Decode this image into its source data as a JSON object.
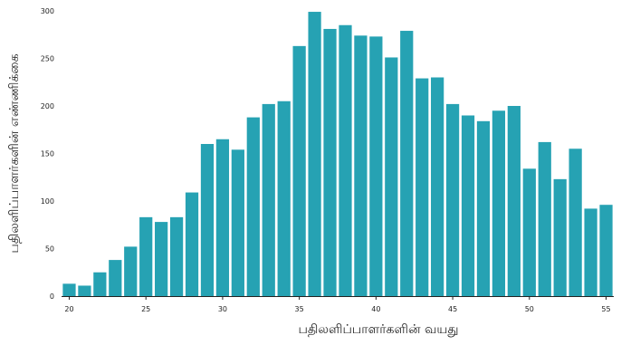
{
  "chart_data": {
    "type": "bar",
    "xlabel": "பதிலளிப்பாளர்களின் வயது",
    "ylabel": "பதிலளிப்பாளர்களின் எண்ணிக்கை",
    "ylim": [
      0,
      300
    ],
    "xlim": [
      19.5,
      55.5
    ],
    "x": [
      20,
      21,
      22,
      23,
      24,
      25,
      26,
      27,
      28,
      29,
      30,
      31,
      32,
      33,
      34,
      35,
      36,
      37,
      38,
      39,
      40,
      41,
      42,
      43,
      44,
      45,
      46,
      47,
      48,
      49,
      50,
      51,
      52,
      53,
      54,
      55
    ],
    "values": [
      13,
      11,
      25,
      38,
      52,
      83,
      78,
      83,
      109,
      160,
      165,
      154,
      188,
      202,
      205,
      263,
      299,
      281,
      285,
      274,
      273,
      251,
      279,
      229,
      230,
      202,
      190,
      184,
      195,
      200,
      134,
      162,
      123,
      155,
      92,
      96
    ],
    "x_ticks": [
      20,
      25,
      30,
      35,
      40,
      45,
      50,
      55
    ],
    "y_ticks": [
      0,
      50,
      100,
      150,
      200,
      250,
      300
    ],
    "bar_color": "#26a2b3",
    "grid": false
  }
}
